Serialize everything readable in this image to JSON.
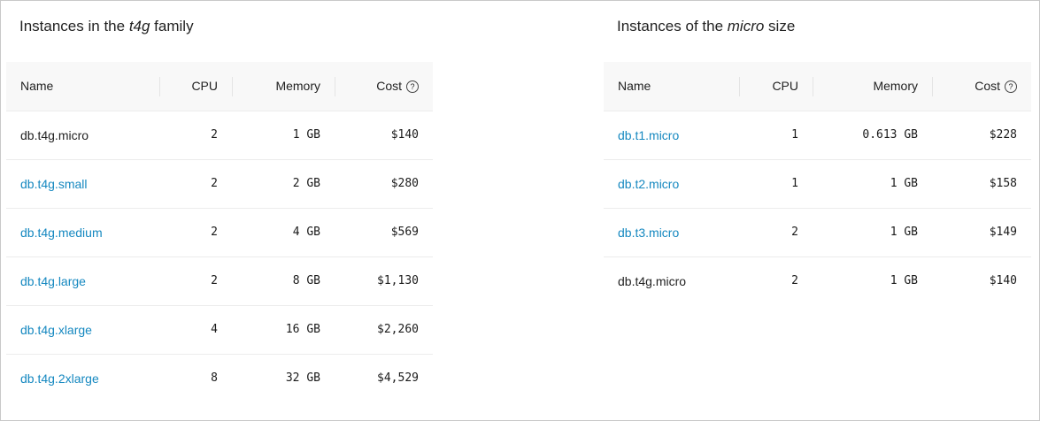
{
  "left": {
    "title_pre": "Instances in the ",
    "title_em": "t4g",
    "title_post": " family",
    "headers": [
      "Name",
      "CPU",
      "Memory",
      "Cost"
    ],
    "rows": [
      {
        "name": "db.t4g.micro",
        "link": false,
        "cpu": "2",
        "memory": "1 GB",
        "cost": "$140"
      },
      {
        "name": "db.t4g.small",
        "link": true,
        "cpu": "2",
        "memory": "2 GB",
        "cost": "$280"
      },
      {
        "name": "db.t4g.medium",
        "link": true,
        "cpu": "2",
        "memory": "4 GB",
        "cost": "$569"
      },
      {
        "name": "db.t4g.large",
        "link": true,
        "cpu": "2",
        "memory": "8 GB",
        "cost": "$1,130"
      },
      {
        "name": "db.t4g.xlarge",
        "link": true,
        "cpu": "4",
        "memory": "16 GB",
        "cost": "$2,260"
      },
      {
        "name": "db.t4g.2xlarge",
        "link": true,
        "cpu": "8",
        "memory": "32 GB",
        "cost": "$4,529"
      }
    ]
  },
  "right": {
    "title_pre": "Instances of the ",
    "title_em": "micro",
    "title_post": " size",
    "headers": [
      "Name",
      "CPU",
      "Memory",
      "Cost"
    ],
    "rows": [
      {
        "name": "db.t1.micro",
        "link": true,
        "cpu": "1",
        "memory": "0.613 GB",
        "cost": "$228"
      },
      {
        "name": "db.t2.micro",
        "link": true,
        "cpu": "1",
        "memory": "1 GB",
        "cost": "$158"
      },
      {
        "name": "db.t3.micro",
        "link": true,
        "cpu": "2",
        "memory": "1 GB",
        "cost": "$149"
      },
      {
        "name": "db.t4g.micro",
        "link": false,
        "cpu": "2",
        "memory": "1 GB",
        "cost": "$140"
      }
    ]
  },
  "icons": {
    "cost_help": "question-circle-icon"
  },
  "colors": {
    "link": "#1588c0"
  }
}
